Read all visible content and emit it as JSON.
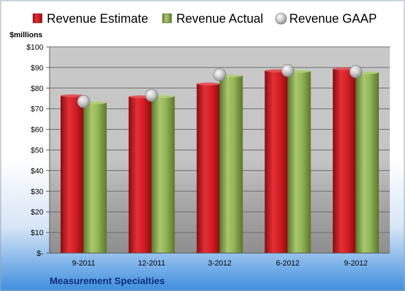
{
  "chart_data": {
    "type": "bar",
    "title": "",
    "ylabel": "$millions",
    "xlabel": "",
    "company": "Measurement Specialties",
    "categories": [
      "9-2011",
      "12-2011",
      "3-2012",
      "6-2012",
      "9-2012"
    ],
    "series": [
      {
        "name": "Revenue Estimate",
        "values": [
          76.3,
          75.8,
          82.0,
          88.4,
          89.3
        ],
        "color": "#c8151b",
        "kind": "bar"
      },
      {
        "name": "Revenue Actual",
        "values": [
          72.9,
          76.0,
          86.0,
          88.2,
          87.5
        ],
        "color": "#8fae53",
        "kind": "bar"
      },
      {
        "name": "Revenue GAAP",
        "values": [
          73.5,
          76.5,
          86.5,
          88.5,
          88.0
        ],
        "color": "#b8b8b8",
        "kind": "marker"
      }
    ],
    "ylim": [
      0,
      100
    ],
    "yticks": [
      0,
      10,
      20,
      30,
      40,
      50,
      60,
      70,
      80,
      90,
      100
    ],
    "ytick_labels": [
      "$-",
      "$10",
      "$20",
      "$30",
      "$40",
      "$50",
      "$60",
      "$70",
      "$80",
      "$90",
      "$100"
    ],
    "grid": true,
    "legend_position": "top"
  }
}
